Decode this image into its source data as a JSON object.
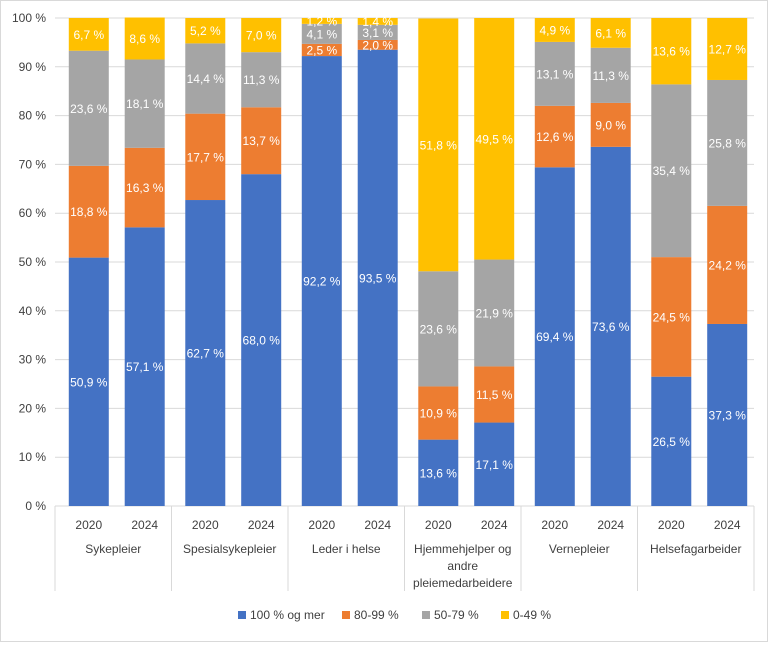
{
  "chart_data": {
    "type": "bar",
    "stacked": true,
    "groups": [
      "Sykepleier",
      "Spesialsykepleier",
      "Leder i helse",
      "Hjemmehjelper og andre pleiemedarbeidere",
      "Vernepleier",
      "Helsefagarbeider"
    ],
    "group_label_lines": [
      [
        "Sykepleier"
      ],
      [
        "Spesialsykepleier"
      ],
      [
        "Leder i helse"
      ],
      [
        "Hjemmehjelper og",
        "andre",
        "pleiemedarbeidere"
      ],
      [
        "Vernepleier"
      ],
      [
        "Helsefagarbeider"
      ]
    ],
    "years": [
      "2020",
      "2024"
    ],
    "y_ticks": [
      "0 %",
      "10 %",
      "20 %",
      "30 %",
      "40 %",
      "50 %",
      "60 %",
      "70 %",
      "80 %",
      "90 %",
      "100 %"
    ],
    "ylim": [
      0,
      100
    ],
    "grid": true,
    "legend_position": "bottom",
    "series": [
      {
        "name": "100 % og mer",
        "color": "#4472C4",
        "values": [
          50.9,
          57.1,
          62.7,
          68.0,
          92.2,
          93.5,
          13.6,
          17.1,
          69.4,
          73.6,
          26.5,
          37.3
        ],
        "labels": [
          "50,9 %",
          "57,1 %",
          "62,7 %",
          "68,0 %",
          "92,2 %",
          "93,5 %",
          "13,6 %",
          "17,1 %",
          "69,4 %",
          "73,6 %",
          "26,5 %",
          "37,3 %"
        ]
      },
      {
        "name": "80-99 %",
        "color": "#ED7D31",
        "values": [
          18.8,
          16.3,
          17.7,
          13.7,
          2.5,
          2.0,
          10.9,
          11.5,
          12.6,
          9.0,
          24.5,
          24.2
        ],
        "labels": [
          "18,8 %",
          "16,3 %",
          "17,7 %",
          "13,7 %",
          "2,5 %",
          "2,0 %",
          "10,9 %",
          "11,5 %",
          "12,6 %",
          "9,0 %",
          "24,5 %",
          "24,2 %"
        ]
      },
      {
        "name": "50-79 %",
        "color": "#A5A5A5",
        "values": [
          23.6,
          18.1,
          14.4,
          11.3,
          4.1,
          3.1,
          23.6,
          21.9,
          13.1,
          11.3,
          35.4,
          25.8
        ],
        "labels": [
          "23,6 %",
          "18,1 %",
          "14,4 %",
          "11,3 %",
          "4,1 %",
          "3,1 %",
          "23,6 %",
          "21,9 %",
          "13,1 %",
          "11,3 %",
          "35,4 %",
          "25,8 %"
        ]
      },
      {
        "name": "0-49 %",
        "color": "#FFC000",
        "values": [
          6.7,
          8.6,
          5.2,
          7.0,
          1.2,
          1.4,
          51.8,
          49.5,
          4.9,
          6.1,
          13.6,
          12.7
        ],
        "labels": [
          "6,7 %",
          "8,6 %",
          "5,2 %",
          "7,0 %",
          "1,2 %",
          "1,4 %",
          "51,8 %",
          "49,5 %",
          "4,9 %",
          "6,1 %",
          "13,6 %",
          "12,7 %"
        ]
      }
    ]
  }
}
